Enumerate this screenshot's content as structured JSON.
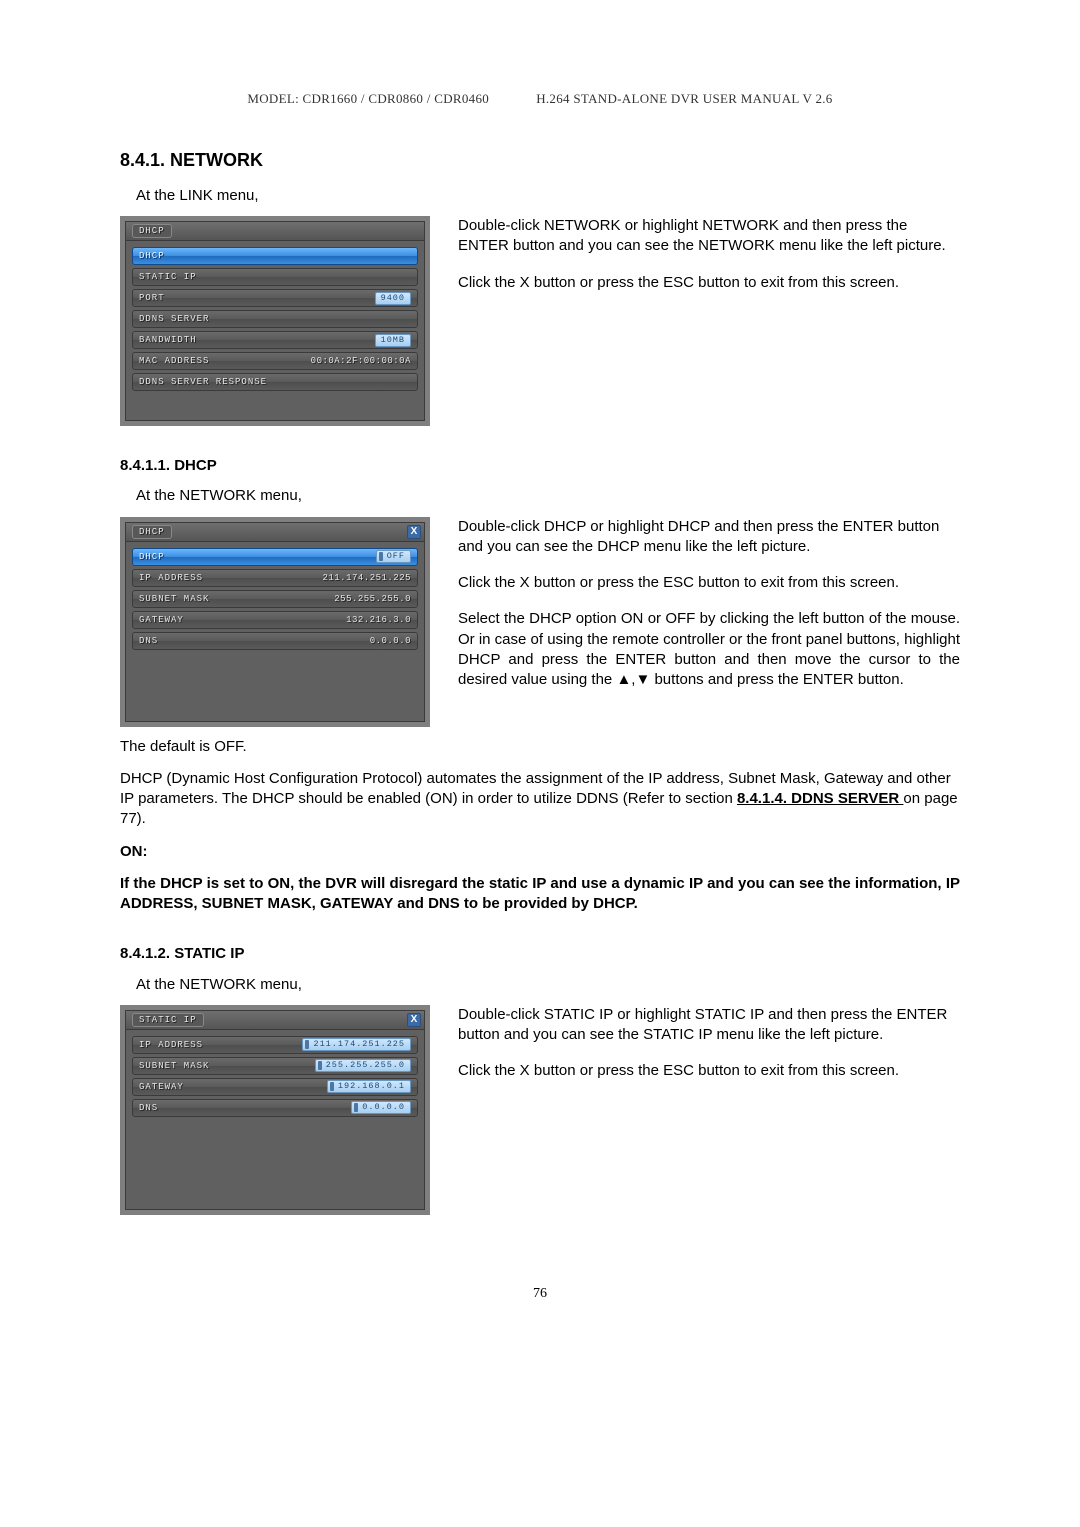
{
  "header": {
    "model_line": "MODEL: CDR1660 / CDR0860 / CDR0460",
    "manual_line": "H.264 STAND-ALONE DVR USER MANUAL V 2.6"
  },
  "section_8_4_1": {
    "number_title": "8.4.1.   NETWORK",
    "intro": "At the LINK menu,",
    "panel": {
      "title": "DHCP",
      "has_close": false,
      "min_height": 200,
      "items": [
        {
          "label": "DHCP",
          "selected": true,
          "value": "",
          "badge": false
        },
        {
          "label": "STATIC IP",
          "selected": false,
          "value": "",
          "badge": false
        },
        {
          "label": "PORT",
          "selected": false,
          "value": "9400",
          "badge": true,
          "bar": false
        },
        {
          "label": "DDNS SERVER",
          "selected": false,
          "value": "",
          "badge": false
        },
        {
          "label": "BANDWIDTH",
          "selected": false,
          "value": "10MB",
          "badge": true,
          "bar": false
        },
        {
          "label": "MAC ADDRESS",
          "selected": false,
          "value": "00:0A:2F:00:00:0A",
          "badge": false
        },
        {
          "label": "DDNS SERVER RESPONSE",
          "selected": false,
          "value": "",
          "badge": false
        }
      ]
    },
    "side": {
      "p1": "Double-click NETWORK or highlight NETWORK and then press the ENTER button and you can see the NETWORK menu like the left picture.",
      "p2": "Click the X button or press the ESC button to exit from this screen."
    }
  },
  "section_8_4_1_1": {
    "number_title": "8.4.1.1.  DHCP",
    "intro": "At the NETWORK menu,",
    "panel": {
      "title": "DHCP",
      "has_close": true,
      "min_height": 200,
      "items": [
        {
          "label": "DHCP",
          "selected": true,
          "value": "OFF",
          "badge": true,
          "bar": true
        },
        {
          "label": "IP ADDRESS",
          "selected": false,
          "value": "211.174.251.225",
          "badge": false
        },
        {
          "label": "SUBNET MASK",
          "selected": false,
          "value": "255.255.255.0",
          "badge": false
        },
        {
          "label": "GATEWAY",
          "selected": false,
          "value": "132.216.3.0",
          "badge": false
        },
        {
          "label": "DNS",
          "selected": false,
          "value": "0.0.0.0",
          "badge": false
        }
      ]
    },
    "side": {
      "p1": "Double-click DHCP or highlight DHCP and then press the ENTER button and you can see the DHCP menu like the left picture.",
      "p2": "Click the X button or press the ESC button to exit from this screen.",
      "p3": "Select the DHCP option ON or OFF by clicking the left button of the mouse. Or in case of using the remote controller or the front panel buttons, highlight DHCP and press the ENTER button and then move the cursor to the desired value using the ▲,▼ buttons and press  the ENTER  button."
    },
    "body": {
      "p1": "The default is OFF.",
      "p2a": "DHCP (Dynamic Host Configuration Protocol) automates the assignment of the IP address, Subnet Mask, Gateway and other IP parameters. The DHCP should be enabled (ON) in order to utilize DDNS (Refer to section ",
      "p2link": "8.4.1.4. DDNS SERVER ",
      "p2b": "on page 77).",
      "on_label": "ON:",
      "on_text": "If the DHCP is set to ON, the DVR will disregard the static IP and use a dynamic IP and you can see the information, IP ADDRESS, SUBNET MASK, GATEWAY and DNS to be provided by DHCP."
    }
  },
  "section_8_4_1_2": {
    "number_title": "8.4.1.2.  STATIC IP",
    "intro": "At the NETWORK menu,",
    "panel": {
      "title": "STATIC IP",
      "has_close": true,
      "min_height": 200,
      "items": [
        {
          "label": "IP ADDRESS",
          "selected": false,
          "value": "211.174.251.225",
          "badge": true,
          "bar": true
        },
        {
          "label": "SUBNET MASK",
          "selected": false,
          "value": "255.255.255.0",
          "badge": true,
          "bar": true
        },
        {
          "label": "GATEWAY",
          "selected": false,
          "value": "192.168.0.1",
          "badge": true,
          "bar": true
        },
        {
          "label": "DNS",
          "selected": false,
          "value": "0.0.0.0",
          "badge": true,
          "bar": true
        }
      ]
    },
    "side": {
      "p1": "Double-click STATIC IP or highlight STATIC IP and then press the ENTER button and you can see the STATIC IP menu like the left picture.",
      "p2": "Click the X button or press the ESC button to exit from this screen."
    }
  },
  "page_number": "76"
}
